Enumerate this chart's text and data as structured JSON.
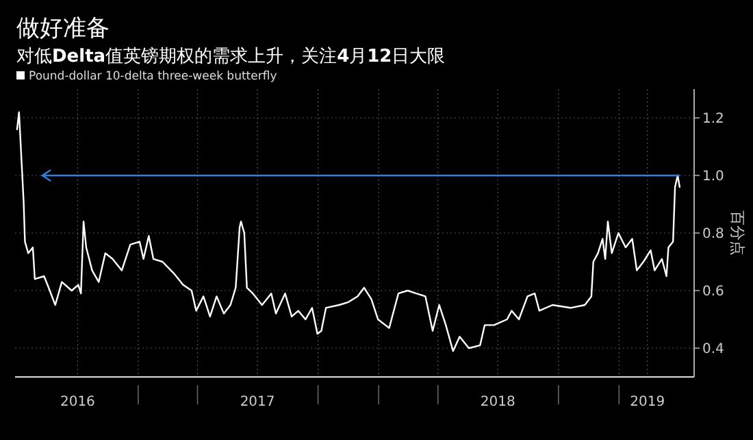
{
  "chart_data": {
    "type": "line",
    "title": "做好准备",
    "subtitle": "对低**Delta**值英镑期权的需求上升，关注**4**月**12**日大限",
    "ylabel": "百分点",
    "xlim": [
      "2016-06-28",
      "2019-04-25"
    ],
    "ylim": [
      0.3,
      1.3
    ],
    "xticks": [
      {
        "value": "2016-10-01",
        "label": "2016"
      },
      {
        "value": "2017-01-01",
        "label": null
      },
      {
        "value": "2017-04-01",
        "label": null
      },
      {
        "value": "2017-07-01",
        "label": "2017"
      },
      {
        "value": "2017-10-01",
        "label": null
      },
      {
        "value": "2018-01-01",
        "label": null
      },
      {
        "value": "2018-04-01",
        "label": null
      },
      {
        "value": "2018-07-01",
        "label": "2018"
      },
      {
        "value": "2018-10-01",
        "label": null
      },
      {
        "value": "2019-01-01",
        "label": null
      },
      {
        "value": "2019-02-13",
        "label": "2019"
      }
    ],
    "yticks": [
      0.4,
      0.6,
      0.8,
      {
        "value": 1,
        "label": "1.0"
      },
      1.2
    ],
    "grid": true,
    "legend": "top left",
    "ref_lines": [
      {
        "axis": "y",
        "value": 1,
        "color": "#2f80d8"
      }
    ],
    "series": [
      {
        "name": "Pound-dollar 10-delta three-week butterfly",
        "color": "#ffffff",
        "x": [
          "2016-07-01",
          "2016-07-04",
          "2016-07-11",
          "2016-07-13",
          "2016-07-18",
          "2016-07-25",
          "2016-07-28",
          "2016-08-11",
          "2016-08-18",
          "2016-08-28",
          "2016-09-07",
          "2016-09-22",
          "2016-10-02",
          "2016-10-06",
          "2016-10-10",
          "2016-10-14",
          "2016-10-23",
          "2016-11-02",
          "2016-11-12",
          "2016-11-23",
          "2016-12-07",
          "2016-12-20",
          "2017-01-03",
          "2017-01-09",
          "2017-01-17",
          "2017-01-24",
          "2017-02-07",
          "2017-02-24",
          "2017-03-10",
          "2017-03-23",
          "2017-03-30",
          "2017-04-10",
          "2017-04-20",
          "2017-04-30",
          "2017-05-11",
          "2017-05-21",
          "2017-05-29",
          "2017-06-04",
          "2017-06-06",
          "2017-06-11",
          "2017-06-15",
          "2017-06-24",
          "2017-07-08",
          "2017-07-22",
          "2017-07-29",
          "2017-08-12",
          "2017-08-22",
          "2017-09-01",
          "2017-09-12",
          "2017-09-22",
          "2017-09-30",
          "2017-10-06",
          "2017-10-13",
          "2017-11-02",
          "2017-11-16",
          "2017-11-30",
          "2017-12-10",
          "2017-12-21",
          "2017-12-31",
          "2018-01-17",
          "2018-01-31",
          "2018-02-14",
          "2018-02-27",
          "2018-03-13",
          "2018-03-24",
          "2018-04-03",
          "2018-04-13",
          "2018-04-24",
          "2018-05-04",
          "2018-05-18",
          "2018-06-04",
          "2018-06-11",
          "2018-06-25",
          "2018-07-15",
          "2018-07-22",
          "2018-08-02",
          "2018-08-15",
          "2018-08-26",
          "2018-09-02",
          "2018-09-22",
          "2018-10-20",
          "2018-11-10",
          "2018-11-20",
          "2018-11-23",
          "2018-11-30",
          "2018-12-07",
          "2018-12-11",
          "2018-12-15",
          "2018-12-21",
          "2018-12-31",
          "2019-01-11",
          "2019-01-21",
          "2019-01-28",
          "2019-02-07",
          "2019-02-18",
          "2019-02-24",
          "2019-03-07",
          "2019-03-14",
          "2019-03-17",
          "2019-03-24",
          "2019-03-27",
          "2019-03-31",
          "2019-04-03"
        ],
        "values": [
          1.16,
          1.22,
          0.91,
          0.77,
          0.73,
          0.75,
          0.64,
          0.65,
          0.61,
          0.55,
          0.63,
          0.6,
          0.62,
          0.59,
          0.84,
          0.75,
          0.67,
          0.63,
          0.73,
          0.71,
          0.67,
          0.76,
          0.77,
          0.71,
          0.79,
          0.71,
          0.7,
          0.66,
          0.62,
          0.6,
          0.53,
          0.58,
          0.51,
          0.58,
          0.52,
          0.55,
          0.61,
          0.82,
          0.84,
          0.8,
          0.61,
          0.59,
          0.55,
          0.59,
          0.52,
          0.59,
          0.51,
          0.53,
          0.5,
          0.54,
          0.45,
          0.46,
          0.54,
          0.55,
          0.56,
          0.58,
          0.61,
          0.57,
          0.5,
          0.47,
          0.59,
          0.6,
          0.59,
          0.58,
          0.46,
          0.55,
          0.48,
          0.39,
          0.44,
          0.4,
          0.41,
          0.48,
          0.48,
          0.5,
          0.53,
          0.5,
          0.58,
          0.59,
          0.53,
          0.55,
          0.54,
          0.55,
          0.58,
          0.7,
          0.73,
          0.78,
          0.71,
          0.84,
          0.73,
          0.8,
          0.75,
          0.78,
          0.67,
          0.7,
          0.74,
          0.67,
          0.71,
          0.65,
          0.75,
          0.77,
          0.96,
          1.0,
          0.96
        ]
      }
    ]
  }
}
